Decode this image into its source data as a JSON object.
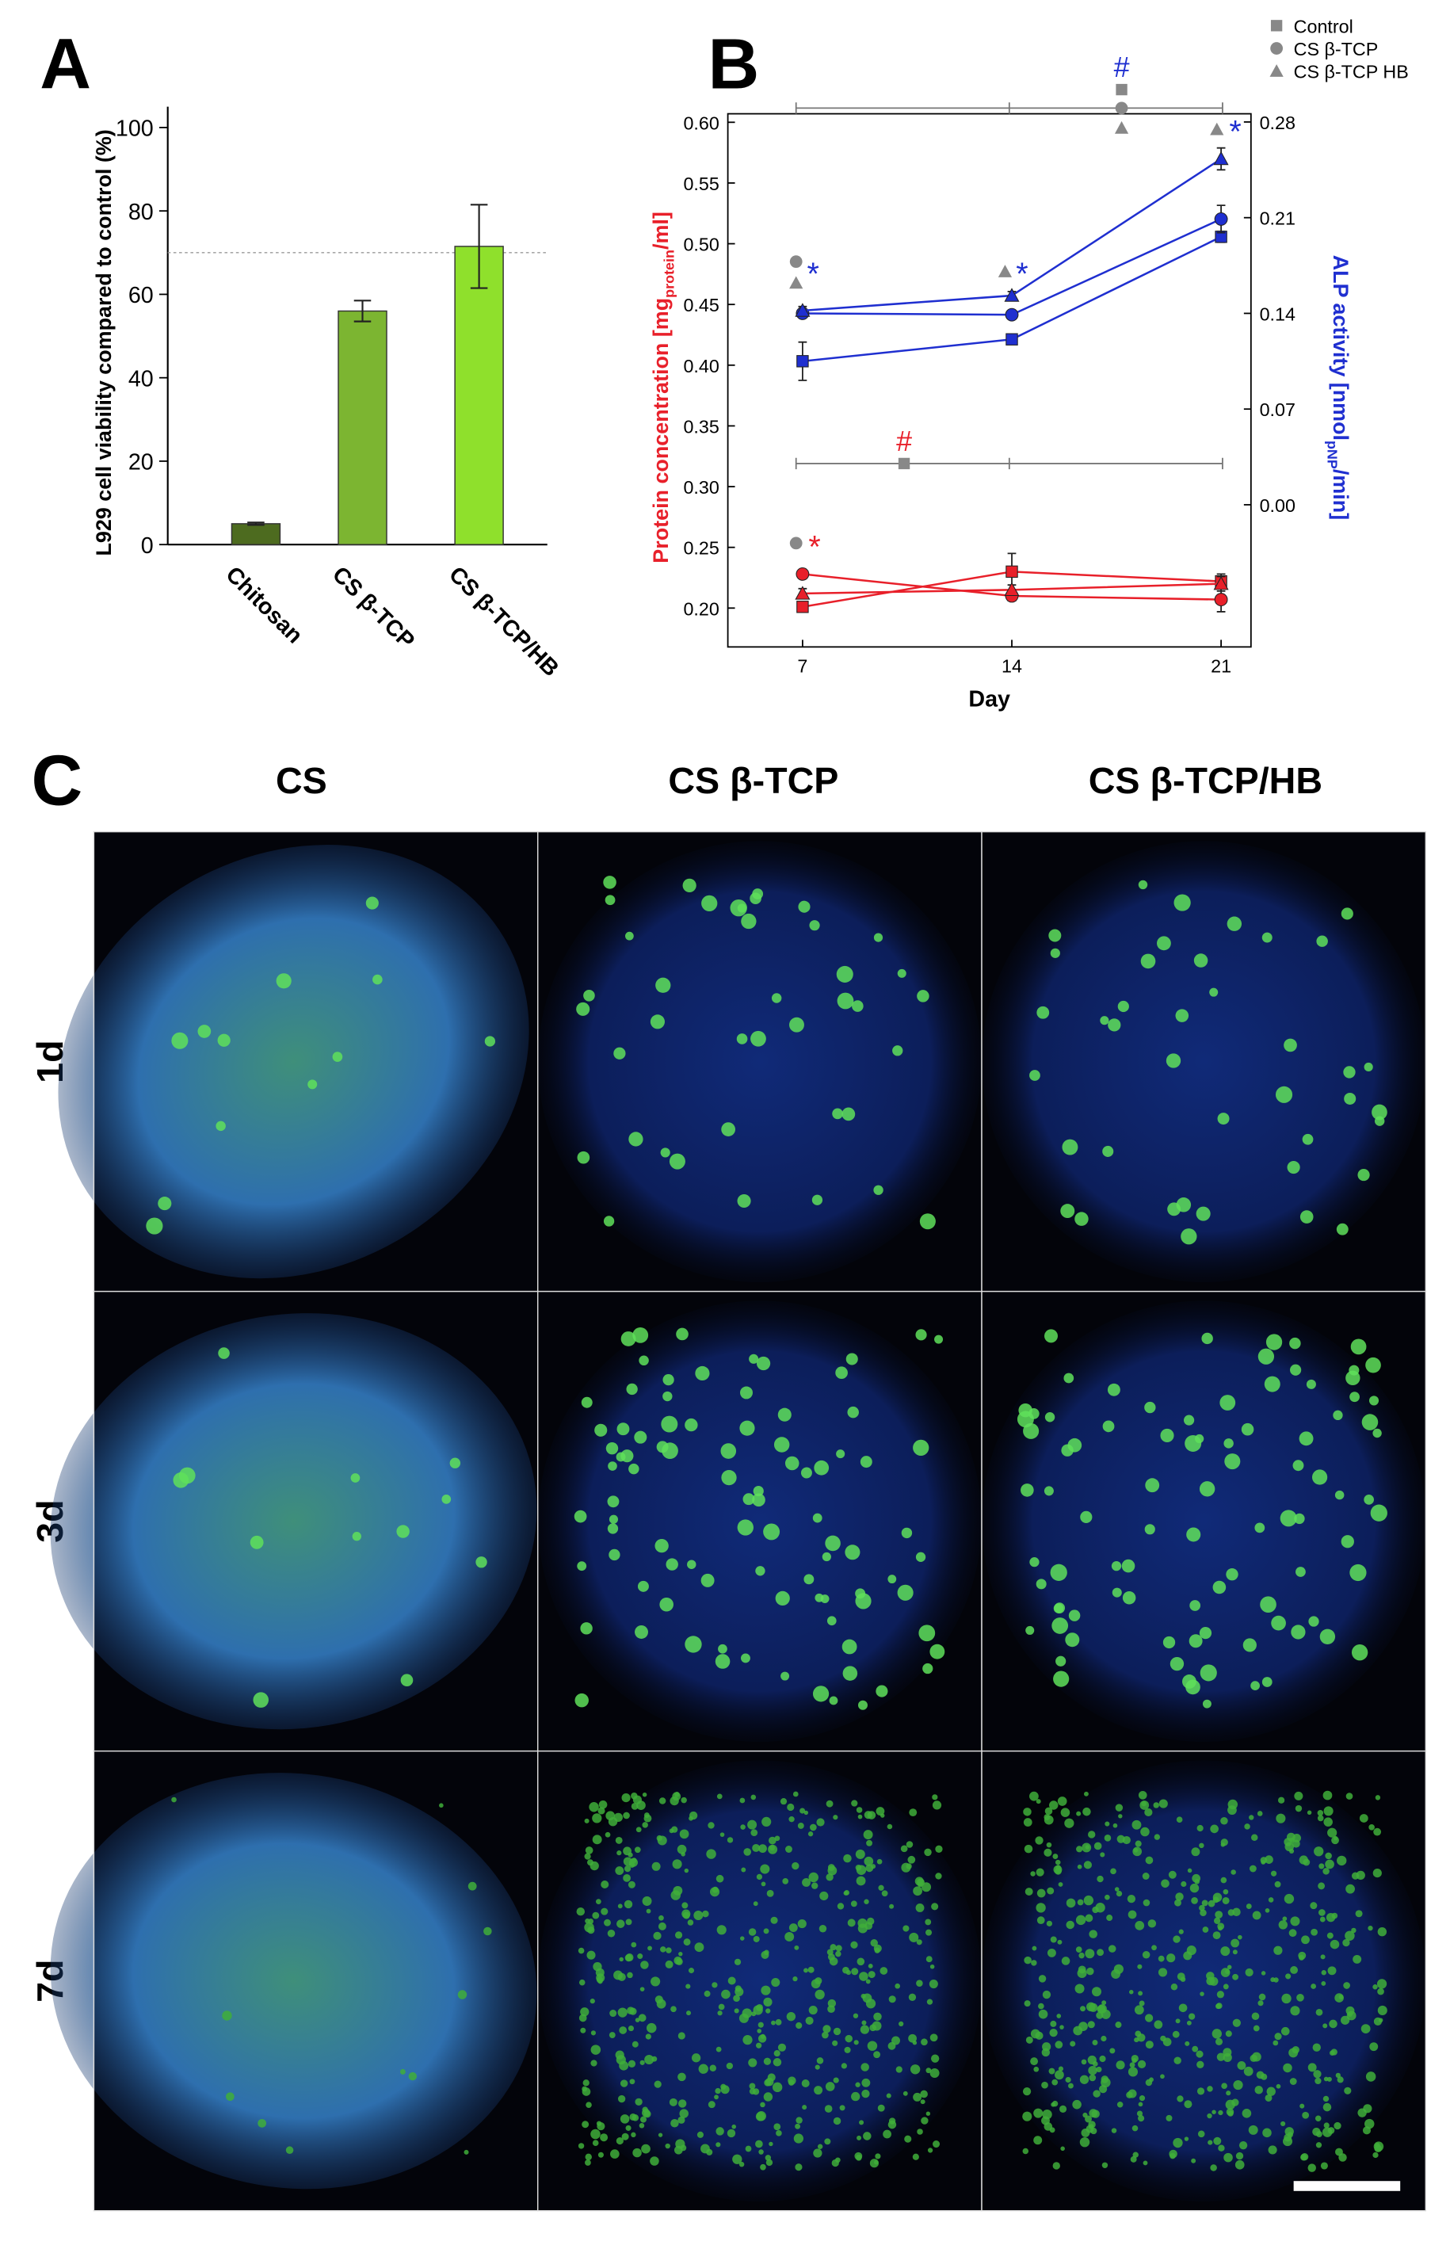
{
  "chart_data": [
    {
      "type": "bar",
      "panel": "A",
      "y_label": "L929 cell viability compared to control (%)",
      "categories": [
        "Chitosan",
        "CS β-TCP",
        "CS β-TCP/HB"
      ],
      "values": [
        5,
        56,
        71.5
      ],
      "errors": [
        0.3,
        2.5,
        10
      ],
      "colors": [
        "#4d6b1f",
        "#7cb531",
        "#8fe02c"
      ],
      "ylim": [
        0,
        105
      ],
      "yticks": [
        0,
        20,
        40,
        60,
        80,
        100
      ],
      "reference_line": 70
    },
    {
      "type": "line",
      "panel": "B",
      "x_label": "Day",
      "y_label": {
        "text": "Protein concentration [mg",
        "sub": "protein",
        "tail": "/ml]",
        "color": "#e8202a"
      },
      "y2_label": {
        "text": "ALP activity [nmol",
        "sub": "pNP",
        "tail": "/min]",
        "color": "#1f2fd0"
      },
      "x": [
        7,
        14,
        21
      ],
      "xlim": [
        4.5,
        22
      ],
      "xticks": [
        7,
        14,
        21
      ],
      "ylim": [
        0.168,
        0.607
      ],
      "yticks": [
        {
          "value": 0.2,
          "label": "0.20"
        },
        {
          "value": 0.25,
          "label": "0.25"
        },
        {
          "value": 0.3,
          "label": "0.30"
        },
        {
          "value": 0.35,
          "label": "0.35"
        },
        {
          "value": 0.4,
          "label": "0.40"
        },
        {
          "value": 0.45,
          "label": "0.45"
        },
        {
          "value": 0.5,
          "label": "0.50"
        },
        {
          "value": 0.55,
          "label": "0.55"
        },
        {
          "value": 0.6,
          "label": "0.60"
        }
      ],
      "y2lim": [
        -0.104,
        0.286
      ],
      "y2ticks": [
        {
          "value": 0,
          "label": "0.00"
        },
        0.07,
        0.14,
        0.21,
        0.28
      ],
      "legend": [
        {
          "name": "Control",
          "marker": "square"
        },
        {
          "name": "CS β-TCP",
          "marker": "circle"
        },
        {
          "name": "CS β-TCP HB",
          "marker": "triangle"
        }
      ],
      "series": [
        {
          "group": 0,
          "color": "#e8202a",
          "values": [
            0.201,
            0.23,
            0.222
          ],
          "errors": [
            0.004,
            0.015,
            0.006
          ]
        },
        {
          "group": 1,
          "color": "#e8202a",
          "values": [
            0.228,
            0.21,
            0.207
          ],
          "errors": [
            0.003,
            0.004,
            0.01
          ]
        },
        {
          "group": 2,
          "color": "#e8202a",
          "values": [
            0.212,
            0.215,
            0.22
          ],
          "errors": [
            0.004,
            0.004,
            0.006
          ]
        },
        {
          "group": 0,
          "color": "#1f2fd0",
          "axis": "y2",
          "values": [
            0.105,
            0.121,
            0.196
          ],
          "errors": [
            0.014,
            0.002,
            0.004
          ]
        },
        {
          "group": 1,
          "color": "#1f2fd0",
          "axis": "y2",
          "values": [
            0.14,
            0.139,
            0.209
          ],
          "errors": [
            0.003,
            0.002,
            0.01
          ]
        },
        {
          "group": 2,
          "color": "#1f2fd0",
          "axis": "y2",
          "values": [
            0.142,
            0.153,
            0.253
          ],
          "errors": [
            0.003,
            0.003,
            0.008
          ]
        }
      ],
      "annotations": [
        {
          "text": "#",
          "color": "#1f2fd0"
        },
        {
          "text": "*",
          "color": "#1f2fd0"
        },
        {
          "text": "*",
          "color": "#1f2fd0"
        },
        {
          "text": "*",
          "color": "#1f2fd0"
        },
        {
          "text": "#",
          "color": "#e8202a"
        },
        {
          "text": "*",
          "color": "#e8202a"
        }
      ]
    }
  ],
  "image_panel": {
    "panel": "C",
    "columns": [
      "CS",
      "CS β-TCP",
      "CS β-TCP/HB"
    ],
    "rows": [
      "1d",
      "3d",
      "7d"
    ]
  }
}
